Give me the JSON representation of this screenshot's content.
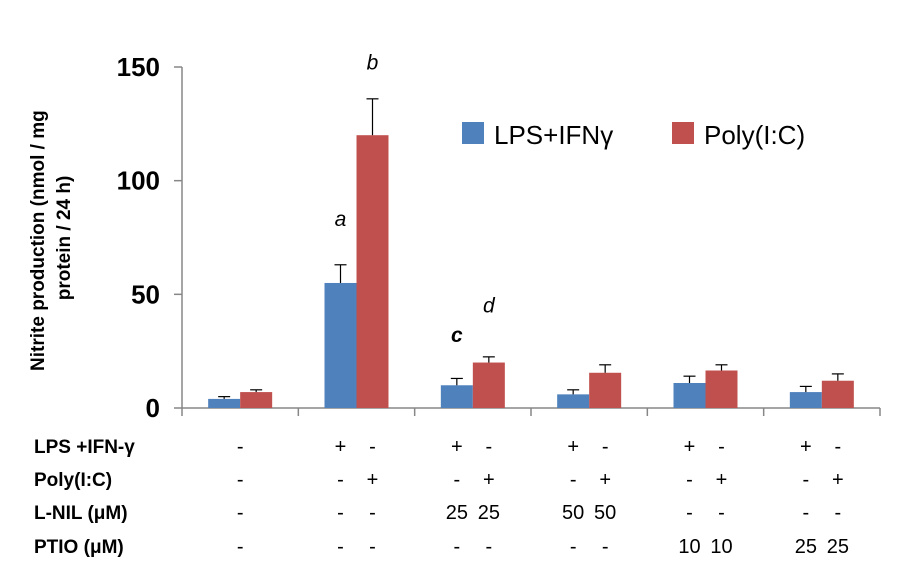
{
  "chart_data": {
    "type": "bar",
    "ylabel_lines": [
      "Nitrite production (nmol / mg",
      "protein / 24 h)"
    ],
    "ylim": [
      0,
      150
    ],
    "yticks": [
      0,
      50,
      100,
      150
    ],
    "grid": false,
    "legend_position": "top-right",
    "series": [
      {
        "name": "LPS+IFNγ",
        "color": "#4F81BD",
        "values": [
          4,
          55,
          10,
          6,
          11,
          7
        ],
        "errors": [
          1,
          8,
          3,
          2,
          3,
          2.5
        ]
      },
      {
        "name": "Poly(I:C)",
        "color": "#C0504D",
        "values": [
          7,
          120,
          20,
          15.5,
          16.5,
          12
        ],
        "errors": [
          1,
          16,
          2.5,
          3.5,
          2.5,
          3
        ]
      }
    ],
    "annotations": [
      {
        "text": "a",
        "group": 1,
        "series": 0,
        "y": 80,
        "bold": false
      },
      {
        "text": "b",
        "group": 1,
        "series": 1,
        "y": 149,
        "bold": false
      },
      {
        "text": "c",
        "group": 2,
        "series": 0,
        "y": 29,
        "bold": true
      },
      {
        "text": "d",
        "group": 2,
        "series": 1,
        "y": 42,
        "bold": false
      }
    ],
    "conditions": [
      {
        "label": "LPS +IFN-γ",
        "cells": [
          [
            "-"
          ],
          [
            "+",
            "-"
          ],
          [
            "+",
            "-"
          ],
          [
            "+",
            "-"
          ],
          [
            "+",
            "-"
          ],
          [
            "+",
            "-"
          ]
        ]
      },
      {
        "label": "Poly(I:C)",
        "cells": [
          [
            "-"
          ],
          [
            "-",
            "+"
          ],
          [
            "-",
            "+"
          ],
          [
            "-",
            "+"
          ],
          [
            "-",
            "+"
          ],
          [
            "-",
            "+"
          ]
        ]
      },
      {
        "label": "L-NIL (μM)",
        "cells": [
          [
            "-"
          ],
          [
            "-",
            "-"
          ],
          [
            "25",
            "25"
          ],
          [
            "50",
            "50"
          ],
          [
            "-",
            "-"
          ],
          [
            "-",
            "-"
          ]
        ]
      },
      {
        "label": "PTIO (μM)",
        "cells": [
          [
            "-"
          ],
          [
            "-",
            "-"
          ],
          [
            "-",
            "-"
          ],
          [
            "-",
            "-"
          ],
          [
            "10",
            "10"
          ],
          [
            "25",
            "25"
          ]
        ]
      }
    ]
  }
}
